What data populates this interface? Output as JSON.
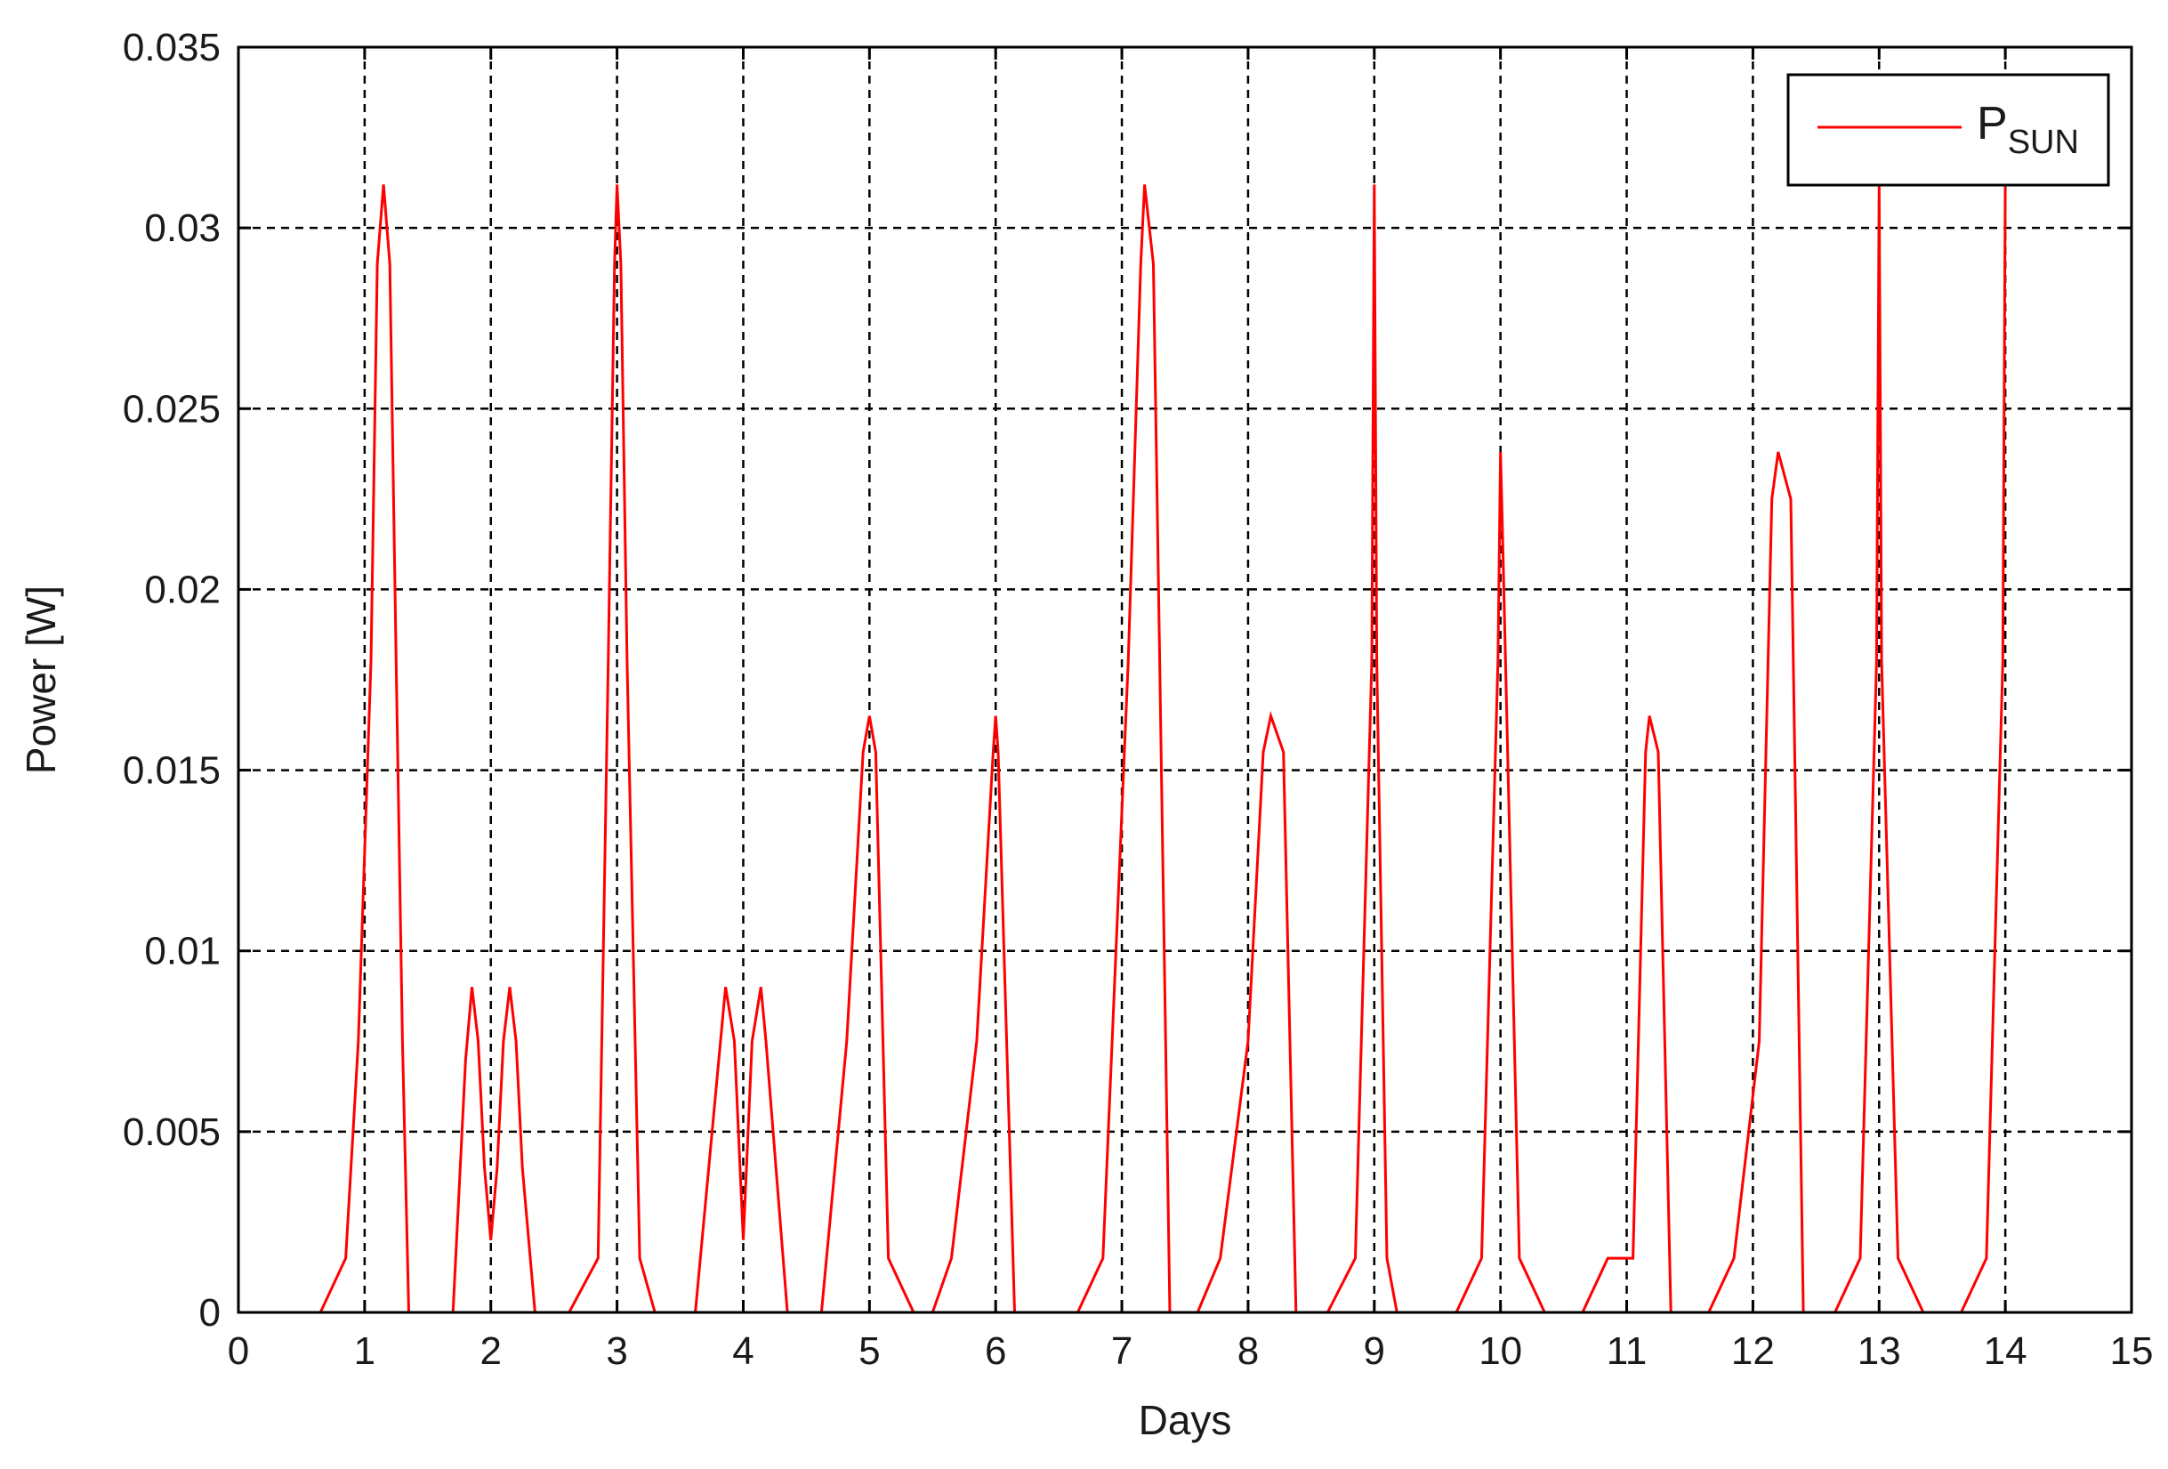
{
  "chart_data": {
    "type": "line",
    "title": "",
    "xlabel": "Days",
    "ylabel": "Power [W]",
    "xlim": [
      0,
      15
    ],
    "ylim": [
      0,
      0.035
    ],
    "x_ticks": [
      "0",
      "1",
      "2",
      "3",
      "4",
      "5",
      "6",
      "7",
      "8",
      "9",
      "10",
      "11",
      "12",
      "13",
      "14",
      "15"
    ],
    "y_ticks": [
      "0",
      "0.005",
      "0.01",
      "0.015",
      "0.02",
      "0.025",
      "0.03",
      "0.035"
    ],
    "grid": true,
    "legend_position": "top-right",
    "series": [
      {
        "name": "P_SUN",
        "label_main": "P",
        "label_sub": "SUN",
        "color": "#ff0000",
        "x": [
          0,
          0.65,
          0.85,
          0.95,
          1.05,
          1.1,
          1.15,
          1.2,
          1.25,
          1.3,
          1.35,
          1.7,
          1.8,
          1.85,
          1.9,
          1.95,
          2.0,
          2.05,
          2.1,
          2.15,
          2.2,
          2.25,
          2.35,
          2.62,
          2.85,
          2.93,
          2.98,
          3.0,
          3.03,
          3.08,
          3.18,
          3.3,
          3.62,
          3.82,
          3.86,
          3.93,
          4.0,
          4.07,
          4.14,
          4.18,
          4.35,
          4.62,
          4.82,
          4.95,
          5.0,
          5.05,
          5.15,
          5.35,
          5.5,
          5.65,
          5.85,
          5.98,
          6.0,
          6.02,
          6.15,
          6.65,
          6.85,
          7.05,
          7.15,
          7.18,
          7.25,
          7.3,
          7.38,
          7.6,
          7.78,
          8.0,
          8.12,
          8.18,
          8.28,
          8.38,
          8.63,
          8.85,
          8.98,
          9.0,
          9.02,
          9.1,
          9.18,
          9.65,
          9.85,
          9.98,
          10.0,
          10.02,
          10.15,
          10.35,
          10.65,
          10.85,
          10.9,
          11.05,
          11.15,
          11.18,
          11.25,
          11.35,
          11.65,
          11.85,
          12.05,
          12.15,
          12.2,
          12.3,
          12.4,
          12.65,
          12.85,
          12.98,
          13.0,
          13.02,
          13.15,
          13.35,
          13.65,
          13.85,
          13.98,
          14.0
        ],
        "y": [
          0,
          0,
          0.0015,
          0.0075,
          0.018,
          0.029,
          0.0312,
          0.029,
          0.018,
          0.0075,
          0,
          0,
          0.007,
          0.009,
          0.0075,
          0.004,
          0.002,
          0.004,
          0.0075,
          0.009,
          0.0075,
          0.004,
          0,
          0,
          0.0015,
          0.018,
          0.029,
          0.0312,
          0.029,
          0.018,
          0.0015,
          0,
          0,
          0.0075,
          0.009,
          0.0075,
          0.002,
          0.0075,
          0.009,
          0.0075,
          0,
          0,
          0.0075,
          0.0155,
          0.0165,
          0.0155,
          0.0015,
          0,
          0,
          0.0015,
          0.0075,
          0.0155,
          0.0165,
          0.0155,
          0,
          0,
          0.0015,
          0.018,
          0.029,
          0.0312,
          0.029,
          0.018,
          0,
          0,
          0.0015,
          0.0075,
          0.0155,
          0.0165,
          0.0155,
          0,
          0,
          0.0015,
          0.018,
          0.0312,
          0.018,
          0.0015,
          0,
          0,
          0.0015,
          0.018,
          0.0238,
          0.021,
          0.0015,
          0,
          0,
          0.0015,
          0.0015,
          0.0015,
          0.0155,
          0.0165,
          0.0155,
          0,
          0,
          0.0015,
          0.0075,
          0.0225,
          0.0238,
          0.0225,
          0,
          0,
          0.0015,
          0.018,
          0.0312,
          0.018,
          0.0015,
          0,
          0,
          0.0015,
          0.018,
          0.0312
        ]
      }
    ]
  }
}
